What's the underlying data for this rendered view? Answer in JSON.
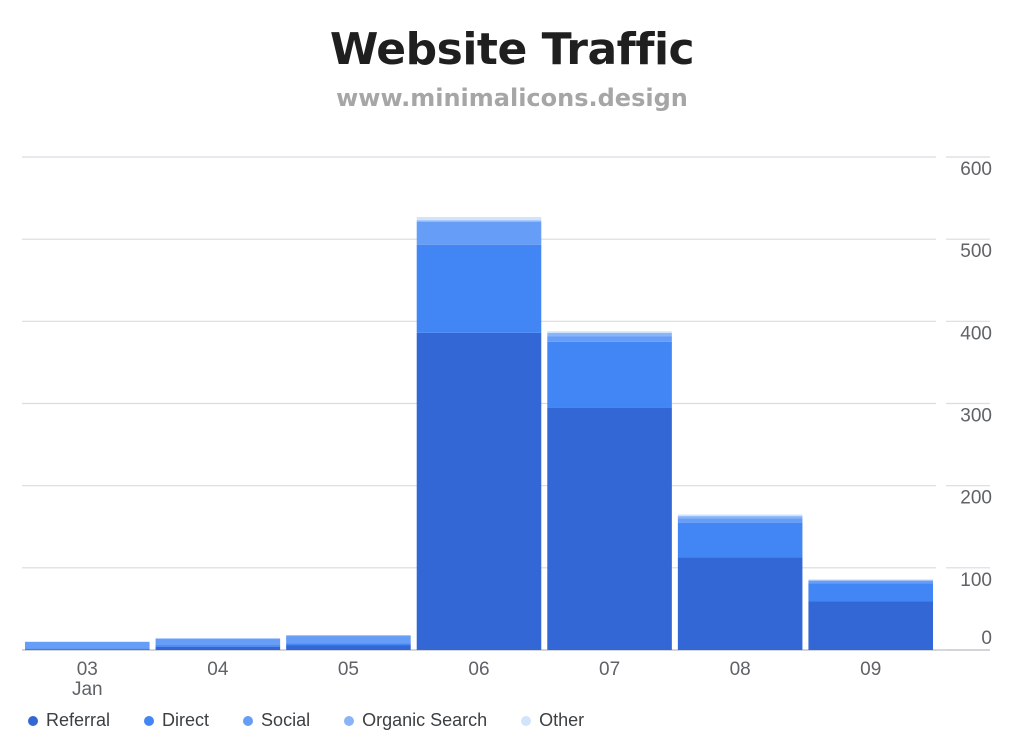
{
  "header": {
    "title": "Website Traffic",
    "subtitle": "www.minimalicons.design"
  },
  "chart_data": {
    "type": "bar",
    "stacked": true,
    "categories": [
      "03",
      "04",
      "05",
      "06",
      "07",
      "08",
      "09"
    ],
    "category_sublabels": [
      "Jan",
      "",
      "",
      "",
      "",
      "",
      ""
    ],
    "ylim": [
      0,
      600
    ],
    "yticks": [
      0,
      100,
      200,
      300,
      400,
      500,
      600
    ],
    "y_axis_side": "right",
    "grid": true,
    "legend_position": "bottom-left",
    "series": [
      {
        "name": "Referral",
        "color": "#3367d6",
        "values": [
          1,
          4,
          6,
          386,
          295,
          113,
          59
        ]
      },
      {
        "name": "Direct",
        "color": "#4285f4",
        "values": [
          1,
          2,
          2,
          107,
          80,
          42,
          22
        ]
      },
      {
        "name": "Social",
        "color": "#669df6",
        "values": [
          8,
          8,
          9,
          28,
          7,
          5,
          3
        ]
      },
      {
        "name": "Organic Search",
        "color": "#8ab4f8",
        "values": [
          0,
          0,
          1,
          2,
          4,
          3,
          1
        ]
      },
      {
        "name": "Other",
        "color": "#d2e3fc",
        "values": [
          0,
          0,
          0,
          4,
          2,
          2,
          1
        ]
      }
    ]
  }
}
